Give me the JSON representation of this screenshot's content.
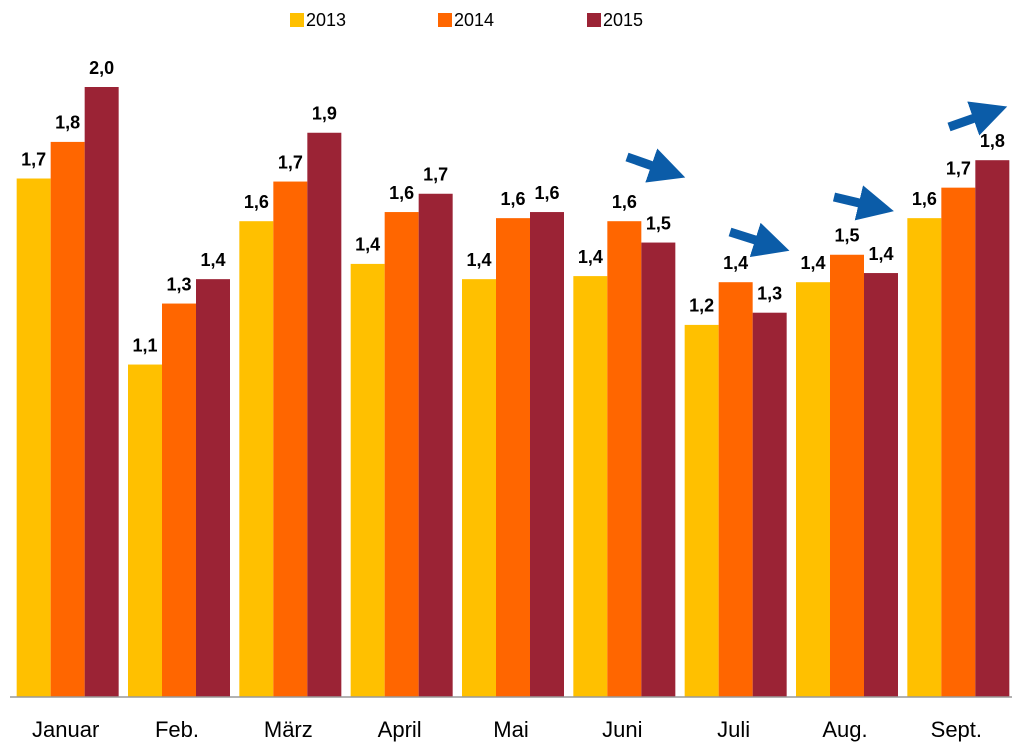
{
  "chart_data": {
    "type": "bar",
    "categories": [
      "Januar",
      "Feb.",
      "März",
      "April",
      "Mai",
      "Juni",
      "Juli",
      "Aug.",
      "Sept."
    ],
    "series": [
      {
        "name": "2013",
        "color": "#ffc000",
        "values": [
          1.7,
          1.09,
          1.56,
          1.42,
          1.37,
          1.38,
          1.22,
          1.36,
          1.57
        ],
        "value_labels": [
          "1,7",
          "1,1",
          "1,6",
          "1,4",
          "1,4",
          "1,4",
          "1,2",
          "1,4",
          "1,6"
        ]
      },
      {
        "name": "2014",
        "color": "#ff6600",
        "values": [
          1.82,
          1.29,
          1.69,
          1.59,
          1.57,
          1.56,
          1.36,
          1.45,
          1.67
        ],
        "value_labels": [
          "1,8",
          "1,3",
          "1,7",
          "1,6",
          "1,6",
          "1,6",
          "1,4",
          "1,5",
          "1,7"
        ]
      },
      {
        "name": "2015",
        "color": "#9b2335",
        "values": [
          2.0,
          1.37,
          1.85,
          1.65,
          1.59,
          1.49,
          1.26,
          1.39,
          1.76
        ],
        "value_labels": [
          "2,0",
          "1,4",
          "1,9",
          "1,7",
          "1,6",
          "1,5",
          "1,3",
          "1,4",
          "1,8"
        ]
      }
    ],
    "ylim": [
      0,
      2.2
    ],
    "legend": "top"
  }
}
